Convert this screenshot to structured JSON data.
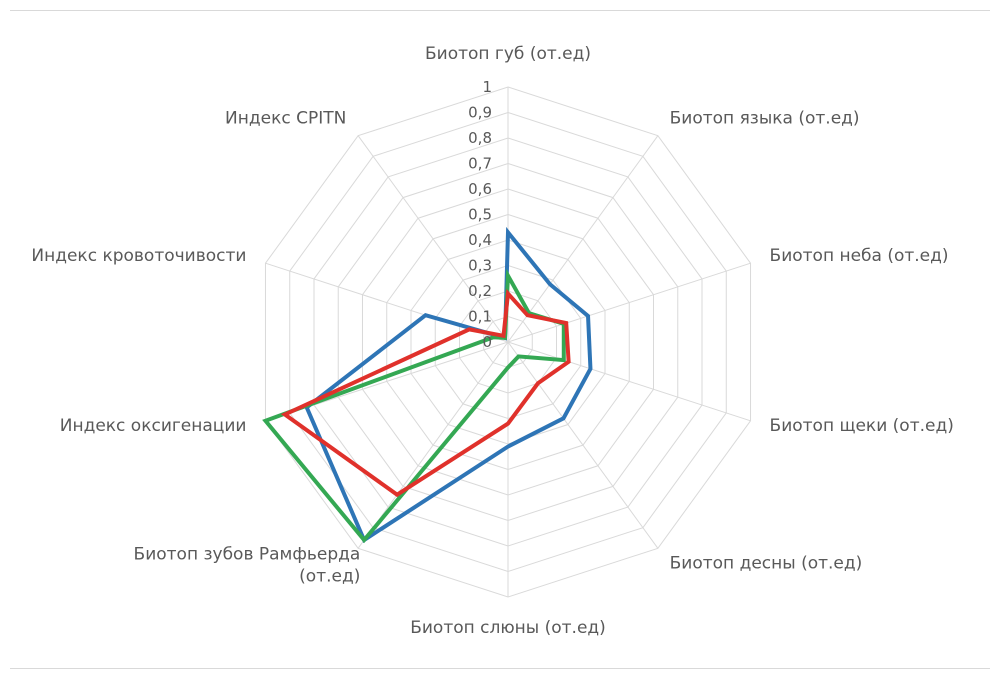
{
  "chart_data": {
    "type": "radar",
    "categories": [
      "Биотоп губ (от.ед)",
      "Биотоп языка (от.ед)",
      "Биотоп неба (от.ед)",
      "Биотоп щеки (от.ед)",
      "Биотоп десны (от.ед)",
      "Биотоп слюны (от.ед)",
      "Биотоп зубов Рамфьерда (от.ед)",
      "Индекс оксигенации",
      "Индекс кровоточивости",
      "Индекс CPITN"
    ],
    "category_lines": [
      [
        "Биотоп губ (от.ед)"
      ],
      [
        "Биотоп языка (от.ед)"
      ],
      [
        "Биотоп неба (от.ед)"
      ],
      [
        "Биотоп щеки (от.ед)"
      ],
      [
        "Биотоп десны (от.ед)"
      ],
      [
        "Биотоп слюны (от.ед)"
      ],
      [
        "Биотоп зубов Рамфьерда",
        "(от.ед)"
      ],
      [
        "Индекс оксигенации"
      ],
      [
        "Индекс кровоточивости"
      ],
      [
        "Индекс CPITN"
      ]
    ],
    "ticks": [
      "0",
      "0,1",
      "0,2",
      "0,3",
      "0,4",
      "0,5",
      "0,6",
      "0,7",
      "0,8",
      "0,9",
      "1"
    ],
    "rlim": [
      0,
      1
    ],
    "grid": true,
    "legend": "none",
    "series": [
      {
        "color": "#2E75B6",
        "values": [
          0.43,
          0.28,
          0.33,
          0.34,
          0.37,
          0.41,
          0.96,
          0.83,
          0.34,
          0.02
        ]
      },
      {
        "color": "#34A853",
        "values": [
          0.26,
          0.14,
          0.23,
          0.23,
          0.07,
          0.1,
          0.96,
          1.0,
          0.06,
          0.02
        ]
      },
      {
        "color": "#E0312B",
        "values": [
          0.19,
          0.13,
          0.24,
          0.25,
          0.2,
          0.32,
          0.74,
          0.92,
          0.16,
          0.03
        ]
      }
    ]
  }
}
